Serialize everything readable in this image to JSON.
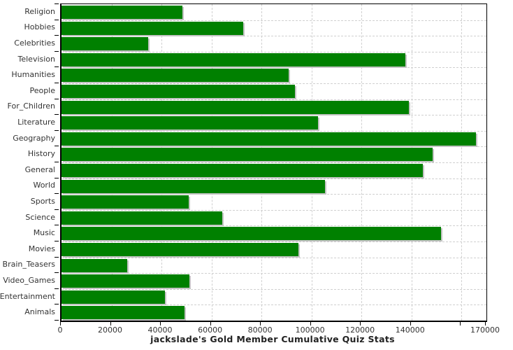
{
  "chart_data": {
    "type": "bar",
    "orientation": "horizontal",
    "title": "jackslade's Gold Member Cumulative Quiz Stats",
    "categories": [
      "Religion",
      "Hobbies",
      "Celebrities",
      "Television",
      "Humanities",
      "People",
      "For_Children",
      "Literature",
      "Geography",
      "History",
      "General",
      "World",
      "Sports",
      "Science",
      "Music",
      "Movies",
      "Brain_Teasers",
      "Video_Games",
      "Entertainment",
      "Animals"
    ],
    "values": [
      48500,
      72600,
      34800,
      137500,
      91000,
      93300,
      138900,
      102500,
      165800,
      148400,
      144500,
      105300,
      51000,
      64200,
      151700,
      94700,
      26200,
      51300,
      41300,
      49100
    ],
    "xlim": [
      0,
      170000
    ],
    "x_ticks": [
      {
        "value": 0,
        "label": "0"
      },
      {
        "value": 20000,
        "label": "20000"
      },
      {
        "value": 40000,
        "label": "40000"
      },
      {
        "value": 60000,
        "label": "60000"
      },
      {
        "value": 80000,
        "label": "80000"
      },
      {
        "value": 100000,
        "label": "100000"
      },
      {
        "value": 120000,
        "label": "120000"
      },
      {
        "value": 140000,
        "label": "140000"
      },
      {
        "value": 160000,
        "label": ""
      },
      {
        "value": 170000,
        "label": "170000"
      }
    ],
    "grid": "dashed-both-axes",
    "legend": "none",
    "colors": {
      "bar": "#008000",
      "bar_shadow": "#c4c4c4",
      "grid": "#d0d0d0",
      "axis": "#000000",
      "tick_label": "#333333",
      "title": "#222222",
      "background": "#ffffff"
    }
  }
}
